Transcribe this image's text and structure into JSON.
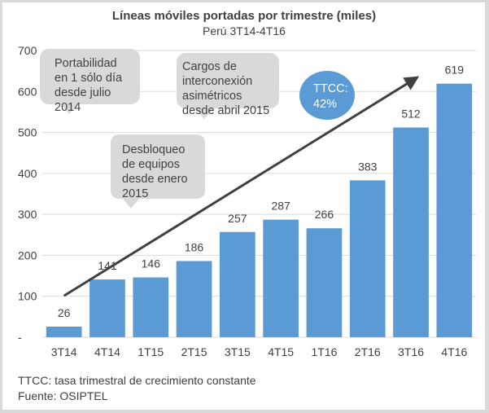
{
  "chart_data": {
    "type": "bar",
    "title": "Líneas móviles portadas por trimestre (miles)",
    "subtitle": "Perú 3T14-4T16",
    "categories": [
      "3T14",
      "4T14",
      "1T15",
      "2T15",
      "3T15",
      "4T15",
      "1T16",
      "2T16",
      "3T16",
      "4T16"
    ],
    "values": [
      26,
      141,
      146,
      186,
      257,
      287,
      266,
      383,
      512,
      619
    ],
    "xlabel": "",
    "ylabel": "",
    "ylim": [
      0,
      700
    ],
    "yticks": [
      0,
      100,
      200,
      300,
      400,
      500,
      600,
      700
    ],
    "ytick_labels": [
      "-",
      "100",
      "200",
      "300",
      "400",
      "500",
      "600",
      "700"
    ],
    "grid": true,
    "bar_color": "#5b9bd5",
    "trend_arrow": {
      "from_category": "3T14",
      "from_value": 125,
      "to_category": "3T16",
      "to_value": 625,
      "color": "#404040"
    },
    "annotations": [
      {
        "lines": [
          "Portabilidad",
          "en 1 sólo día",
          "desde julio",
          "2014"
        ]
      },
      {
        "lines": [
          "Cargos de",
          "interconexión",
          "asimétricos",
          "desde abril 2015"
        ]
      },
      {
        "lines": [
          "Desbloqueo",
          "de equipos",
          "desde enero",
          "2015"
        ]
      }
    ],
    "badge": {
      "lines": [
        "TTCC:",
        "42%"
      ],
      "color": "#5b9bd5"
    }
  },
  "footer": {
    "note": "TTCC: tasa trimestral de crecimiento constante",
    "source": "Fuente: OSIPTEL"
  }
}
